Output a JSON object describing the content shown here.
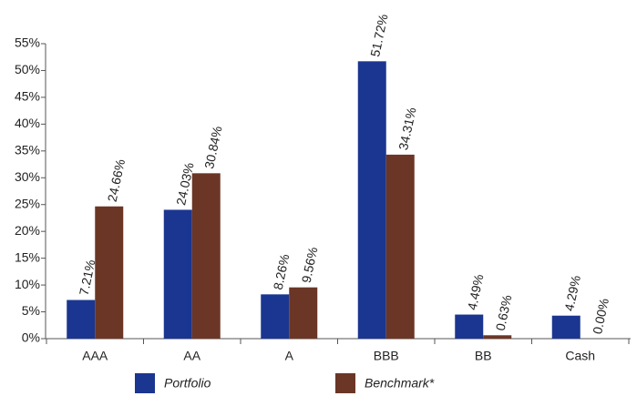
{
  "chart_data": {
    "type": "bar",
    "categories": [
      "AAA",
      "AA",
      "A",
      "BBB",
      "BB",
      "Cash"
    ],
    "series": [
      {
        "name": "Portfolio",
        "color": "#1b3690",
        "values": [
          7.21,
          24.03,
          8.26,
          51.72,
          4.49,
          4.29
        ],
        "value_labels": [
          "7.21%",
          "24.03%",
          "8.26%",
          "51.72%",
          "4.49%",
          "4.29%"
        ]
      },
      {
        "name": "Benchmark*",
        "color": "#6b3626",
        "values": [
          24.66,
          30.84,
          9.56,
          34.31,
          0.63,
          0.0
        ],
        "value_labels": [
          "24.66%",
          "30.84%",
          "9.56%",
          "34.31%",
          "0.63%",
          "0.00%"
        ]
      }
    ],
    "ylim": [
      0,
      55
    ],
    "yticks": [
      {
        "value": 0,
        "label": "0%"
      },
      {
        "value": 5,
        "label": "5%"
      },
      {
        "value": 10,
        "label": "10%"
      },
      {
        "value": 15,
        "label": "15%"
      },
      {
        "value": 20,
        "label": "20%"
      },
      {
        "value": 25,
        "label": "25%"
      },
      {
        "value": 30,
        "label": "30%"
      },
      {
        "value": 35,
        "label": "35%"
      },
      {
        "value": 40,
        "label": "40%"
      },
      {
        "value": 45,
        "label": "45%"
      },
      {
        "value": 50,
        "label": "50%"
      },
      {
        "value": 55,
        "label": "55%"
      }
    ],
    "grid": false,
    "legend": "bottom"
  }
}
